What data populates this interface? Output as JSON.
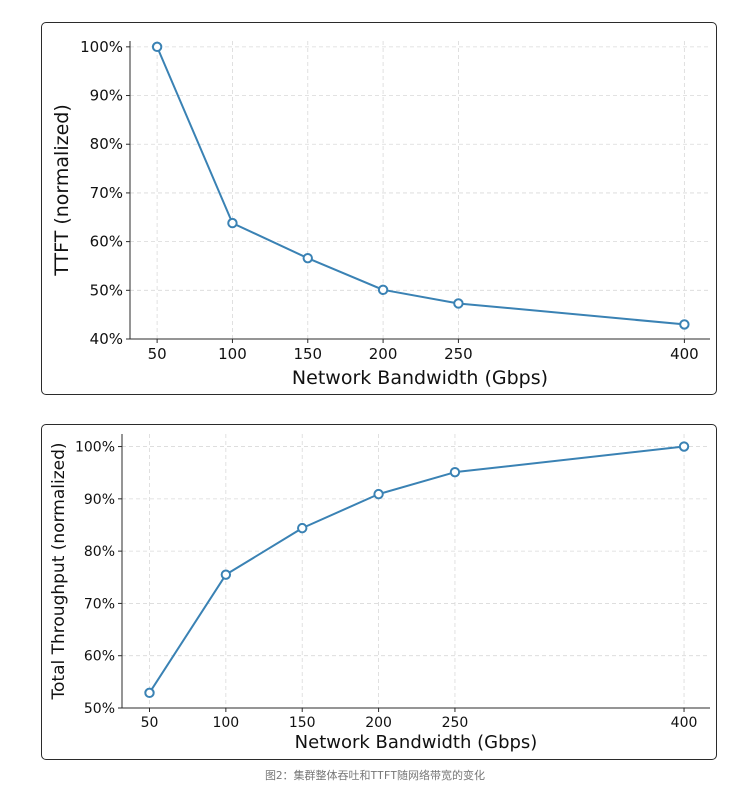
{
  "caption": "图2：集群整体吞吐和TTFT随网络带宽的变化",
  "colors": {
    "line": "#3a82b4",
    "grid": "#d9d9d9",
    "axis": "#2b2b2b",
    "text": "#111111"
  },
  "chart_data": [
    {
      "type": "line",
      "title": "",
      "xlabel": "Network Bandwidth (Gbps)",
      "ylabel": "TTFT (normalized)",
      "x": [
        50,
        100,
        150,
        200,
        250,
        400
      ],
      "xticks": [
        "50",
        "100",
        "150",
        "200",
        "250",
        "400"
      ],
      "xlim": [
        32,
        417
      ],
      "ylim": [
        40,
        101.2
      ],
      "yticks": [
        40,
        50,
        60,
        70,
        80,
        90,
        100
      ],
      "ytick_labels": [
        "40%",
        "50%",
        "60%",
        "70%",
        "80%",
        "90%",
        "100%"
      ],
      "series": [
        {
          "values": [
            100,
            63.8,
            56.6,
            50.1,
            47.3,
            43.0
          ]
        }
      ],
      "grid": true,
      "marker": "hollow-circle"
    },
    {
      "type": "line",
      "title": "",
      "xlabel": "Network Bandwidth (Gbps)",
      "ylabel": "Total Throughput (normalized)",
      "x": [
        50,
        100,
        150,
        200,
        250,
        400
      ],
      "xticks": [
        "50",
        "100",
        "150",
        "200",
        "250",
        "400"
      ],
      "xlim": [
        32,
        417
      ],
      "ylim": [
        50,
        102.4
      ],
      "yticks": [
        50,
        60,
        70,
        80,
        90,
        100
      ],
      "ytick_labels": [
        "50%",
        "60%",
        "70%",
        "80%",
        "90%",
        "100%"
      ],
      "series": [
        {
          "values": [
            52.9,
            75.5,
            84.4,
            90.9,
            95.1,
            100
          ]
        }
      ],
      "grid": true,
      "marker": "hollow-circle"
    }
  ]
}
